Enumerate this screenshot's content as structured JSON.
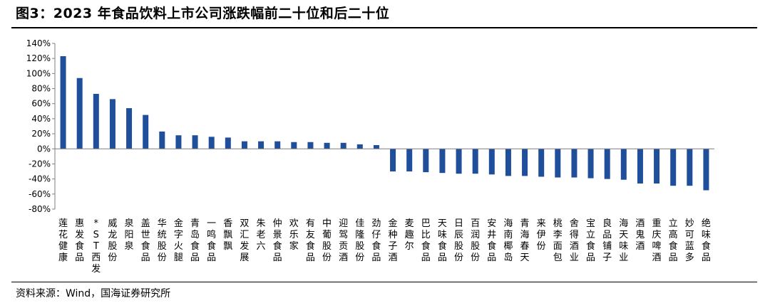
{
  "title": "图3：2023 年食品饮料上市公司涨跌幅前二十位和后二十位",
  "source": "资料来源：Wind，国海证券研究所",
  "colors": {
    "bar": "#1F4E9A",
    "axis": "#7f7f7f",
    "text": "#000000"
  },
  "chart_data": {
    "type": "bar",
    "title": "图3：2023 年食品饮料上市公司涨跌幅前二十位和后二十位",
    "xlabel": "",
    "ylabel": "",
    "ylim": [
      -80,
      140
    ],
    "yticks": [
      140,
      120,
      100,
      80,
      60,
      40,
      20,
      0,
      -20,
      -40,
      -60,
      -80
    ],
    "ytick_labels": [
      "140%",
      "120%",
      "100%",
      "80%",
      "60%",
      "40%",
      "20%",
      "0%",
      "-20%",
      "-40%",
      "-60%",
      "-80%"
    ],
    "grid": false,
    "legend": "none",
    "categories": [
      "莲花健康",
      "惠发食品",
      "*ST西发",
      "威龙股份",
      "泉阳泉",
      "盖世食品",
      "华统股份",
      "金字火腿",
      "青岛食品",
      "一鸣食品",
      "香飘飘",
      "双汇发展",
      "朱老六",
      "仲景食品",
      "欢乐家",
      "有友食品",
      "中葡股份",
      "迎驾贡酒",
      "佳隆股份",
      "劲仔食品",
      "金种子酒",
      "麦趣尔",
      "巴比食品",
      "天味食品",
      "日辰股份",
      "百润股份",
      "安井食品",
      "海南椰岛",
      "青海春天",
      "来伊份",
      "桃李面包",
      "舍得酒业",
      "宝立食品",
      "良品铺子",
      "海天味业",
      "酒鬼酒",
      "重庆啤酒",
      "立高食品",
      "妙可蓝多",
      "绝味食品"
    ],
    "values": [
      123,
      94,
      73,
      66,
      54,
      45,
      23,
      18,
      18,
      16,
      15,
      10,
      10,
      10,
      9,
      9,
      8,
      8,
      6,
      5,
      -30,
      -30,
      -31,
      -32,
      -33,
      -33,
      -34,
      -36,
      -36,
      -37,
      -38,
      -38,
      -39,
      -40,
      -41,
      -46,
      -46,
      -49,
      -49,
      -55
    ]
  }
}
